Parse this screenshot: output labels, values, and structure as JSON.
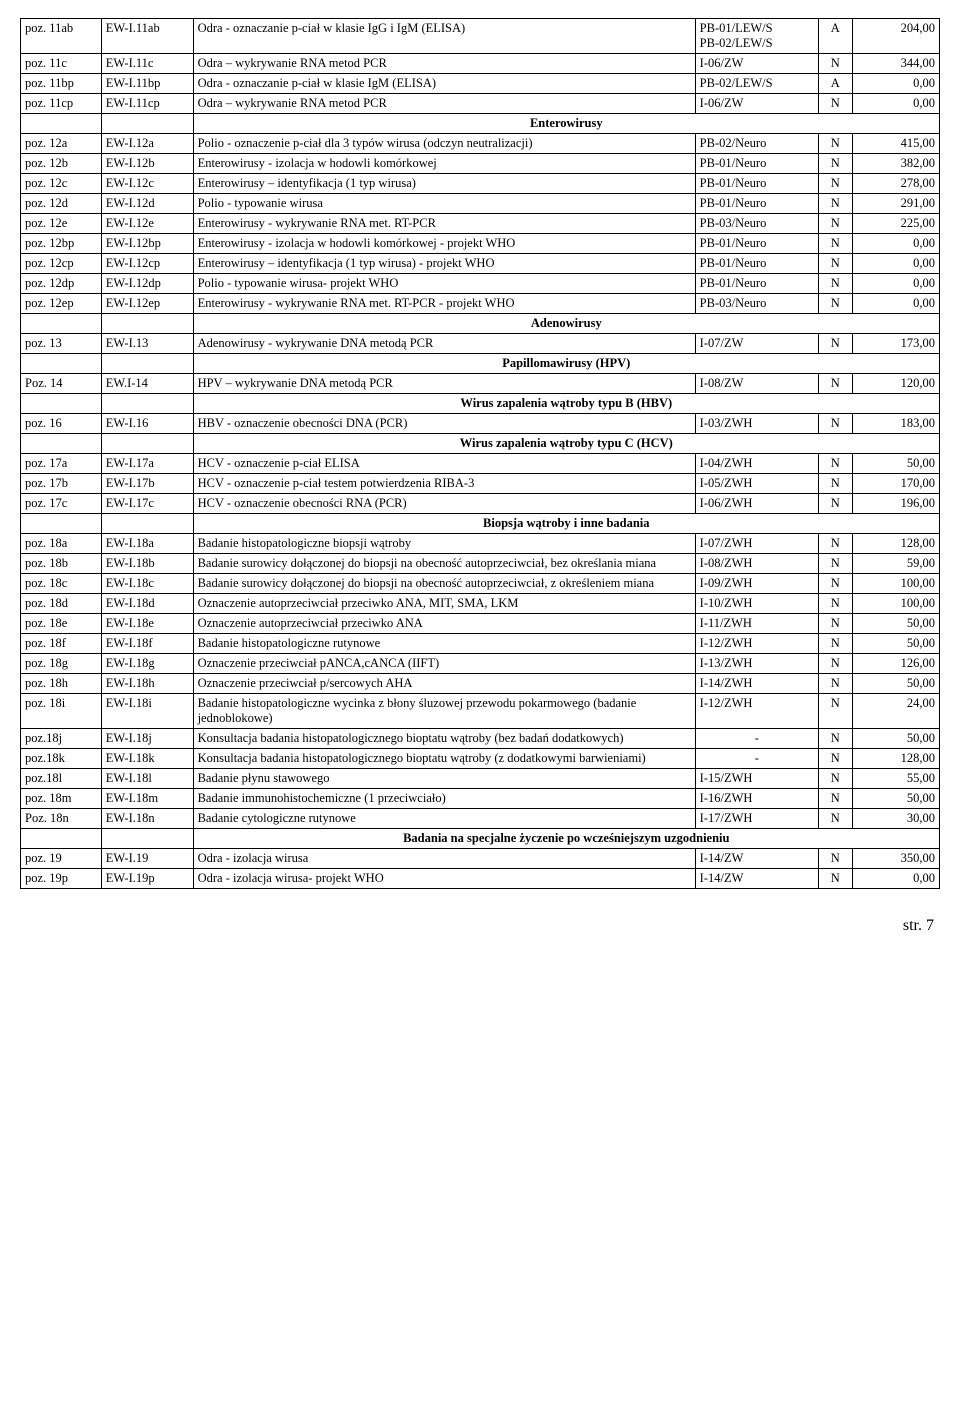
{
  "footer": "str. 7",
  "rows": [
    {
      "type": "row2",
      "poz": "poz. 11ab",
      "code": "EW-I.11ab",
      "desc": "Odra  - oznaczanie p-ciał w klasie IgG  i IgM (ELISA)",
      "ref1": "PB-01/LEW/S",
      "ref2": "PB-02/LEW/S",
      "flag": "A",
      "price": "204,00"
    },
    {
      "type": "row",
      "poz": "poz. 11c",
      "code": "EW-I.11c",
      "desc": "Odra – wykrywanie RNA metod PCR",
      "ref": "I-06/ZW",
      "flag": "N",
      "price": "344,00"
    },
    {
      "type": "row",
      "poz": "poz. 11bp",
      "code": "EW-I.11bp",
      "desc": "Odra  - oznaczanie p-ciał w klasie IgM (ELISA)",
      "ref": "PB-02/LEW/S",
      "flag": "A",
      "price": "0,00"
    },
    {
      "type": "row",
      "poz": "poz. 11cp",
      "code": "EW-I.11cp",
      "desc": "Odra – wykrywanie RNA metod PCR",
      "ref": "I-06/ZW",
      "flag": "N",
      "price": "0,00"
    },
    {
      "type": "section",
      "label": "Enterowirusy",
      "bold": true
    },
    {
      "type": "row",
      "poz": "poz. 12a",
      "code": "EW-I.12a",
      "desc": "Polio - oznaczenie p-ciał dla 3 typów wirusa (odczyn neutralizacji)",
      "ref": "PB-02/Neuro",
      "flag": "N",
      "price": "415,00"
    },
    {
      "type": "row",
      "poz": "poz. 12b",
      "code": "EW-I.12b",
      "desc": "Enterowirusy - izolacja w hodowli komórkowej",
      "ref": "PB-01/Neuro",
      "flag": "N",
      "price": "382,00"
    },
    {
      "type": "row",
      "poz": "poz. 12c",
      "code": "EW-I.12c",
      "desc": "Enterowirusy – identyfikacja  (1 typ wirusa)",
      "ref": "PB-01/Neuro",
      "flag": "N",
      "price": "278,00"
    },
    {
      "type": "row",
      "poz": "poz. 12d",
      "code": "EW-I.12d",
      "desc": "Polio - typowanie wirusa",
      "ref": "PB-01/Neuro",
      "flag": "N",
      "price": "291,00"
    },
    {
      "type": "row",
      "poz": "poz. 12e",
      "code": "EW-I.12e",
      "desc": "Enterowirusy - wykrywanie RNA met. RT-PCR",
      "ref": "PB-03/Neuro",
      "flag": "N",
      "price": "225,00"
    },
    {
      "type": "row",
      "poz": "poz. 12bp",
      "code": "EW-I.12bp",
      "desc": "Enterowirusy - izolacja w hodowli komórkowej - projekt WHO",
      "ref": "PB-01/Neuro",
      "flag": "N",
      "price": "0,00"
    },
    {
      "type": "row",
      "poz": "poz. 12cp",
      "code": "EW-I.12cp",
      "desc": "Enterowirusy – identyfikacja  (1 typ wirusa) - projekt WHO",
      "ref": "PB-01/Neuro",
      "flag": "N",
      "price": "0,00"
    },
    {
      "type": "row",
      "poz": "poz. 12dp",
      "code": "EW-I.12dp",
      "desc": "Polio - typowanie wirusa- projekt WHO",
      "ref": "PB-01/Neuro",
      "flag": "N",
      "price": "0,00"
    },
    {
      "type": "row",
      "poz": "poz. 12ep",
      "code": "EW-I.12ep",
      "desc": "Enterowirusy - wykrywanie RNA met. RT-PCR - projekt WHO",
      "ref": "PB-03/Neuro",
      "flag": "N",
      "price": "0,00"
    },
    {
      "type": "section",
      "label": "Adenowirusy",
      "bold": true
    },
    {
      "type": "row",
      "poz": "poz. 13",
      "code": "EW-I.13",
      "desc": "Adenowirusy  - wykrywanie DNA metodą PCR",
      "ref": "I-07/ZW",
      "flag": "N",
      "price": "173,00"
    },
    {
      "type": "section",
      "label": "Papillomawirusy (HPV)",
      "bold": true
    },
    {
      "type": "row",
      "poz": "Poz. 14",
      "code": "EW.I-14",
      "desc": "HPV – wykrywanie DNA metodą PCR",
      "ref": "I-08/ZW",
      "flag": "N",
      "price": "120,00"
    },
    {
      "type": "section",
      "label": "Wirus zapalenia wątroby typu B (HBV)",
      "bold": true
    },
    {
      "type": "row",
      "poz": "poz. 16",
      "code": "EW-I.16",
      "desc": "HBV - oznaczenie obecności DNA (PCR)",
      "ref": "I-03/ZWH",
      "flag": "N",
      "price": "183,00"
    },
    {
      "type": "section",
      "label": "Wirus zapalenia wątroby typu C (HCV)",
      "bold": true
    },
    {
      "type": "row",
      "poz": "poz. 17a",
      "code": "EW-I.17a",
      "desc": "HCV - oznaczenie p-ciał  ELISA",
      "ref": "I-04/ZWH",
      "flag": "N",
      "price": "50,00"
    },
    {
      "type": "row",
      "poz": "poz. 17b",
      "code": "EW-I.17b",
      "desc": "HCV - oznaczenie p-ciał testem potwierdzenia RIBA-3",
      "ref": "I-05/ZWH",
      "flag": "N",
      "price": "170,00"
    },
    {
      "type": "row",
      "poz": "poz. 17c",
      "code": "EW-I.17c",
      "desc": "HCV - oznaczenie obecności RNA (PCR)",
      "ref": "I-06/ZWH",
      "flag": "N",
      "price": "196,00"
    },
    {
      "type": "section",
      "label": "Biopsja wątroby i inne badania",
      "bold": true
    },
    {
      "type": "row",
      "poz": "poz. 18a",
      "code": "EW-I.18a",
      "desc": "Badanie histopatologiczne biopsji wątroby",
      "ref": "I-07/ZWH",
      "flag": "N",
      "price": "128,00"
    },
    {
      "type": "row",
      "poz": "poz. 18b",
      "code": "EW-I.18b",
      "desc": "Badanie surowicy dołączonej do biopsji na obecność autoprzeciwciał, bez określania miana",
      "ref": "I-08/ZWH",
      "flag": "N",
      "price": "59,00"
    },
    {
      "type": "row",
      "poz": "poz. 18c",
      "code": "EW-I.18c",
      "desc": "Badanie surowicy dołączonej do biopsji na obecność autoprzeciwciał, z określeniem miana",
      "ref": "I-09/ZWH",
      "flag": "N",
      "price": "100,00"
    },
    {
      "type": "row",
      "poz": "poz. 18d",
      "code": "EW-I.18d",
      "desc": "Oznaczenie autoprzeciwciał przeciwko ANA, MIT, SMA, LKM",
      "ref": "I-10/ZWH",
      "flag": "N",
      "price": "100,00"
    },
    {
      "type": "row",
      "poz": "poz. 18e",
      "code": "EW-I.18e",
      "desc": "Oznaczenie autoprzeciwciał przeciwko ANA",
      "ref": "I-11/ZWH",
      "flag": "N",
      "price": "50,00"
    },
    {
      "type": "row",
      "poz": "poz. 18f",
      "code": "EW-I.18f",
      "desc": "Badanie histopatologiczne rutynowe",
      "ref": "I-12/ZWH",
      "flag": "N",
      "price": "50,00"
    },
    {
      "type": "row",
      "poz": "poz. 18g",
      "code": "EW-I.18g",
      "desc": "Oznaczenie przeciwciał pANCA,cANCA (IIFT)",
      "ref": "I-13/ZWH",
      "flag": "N",
      "price": "126,00"
    },
    {
      "type": "row",
      "poz": "poz. 18h",
      "code": "EW-I.18h",
      "desc": "Oznaczenie przeciwciał p/sercowych AHA",
      "ref": "I-14/ZWH",
      "flag": "N",
      "price": "50,00"
    },
    {
      "type": "row",
      "poz": "poz. 18i",
      "code": "EW-I.18i",
      "desc": "Badanie histopatologiczne wycinka z błony śluzowej przewodu pokarmowego (badanie jednoblokowe)",
      "ref": "I-12/ZWH",
      "flag": "N",
      "price": "24,00"
    },
    {
      "type": "row",
      "poz": "poz.18j",
      "code": "EW-I.18j",
      "desc": "Konsultacja badania histopatologicznego bioptatu wątroby (bez badań dodatkowych)",
      "ref": "-",
      "flag": "N",
      "price": "50,00",
      "refcenter": true
    },
    {
      "type": "row",
      "poz": "poz.18k",
      "code": "EW-I.18k",
      "desc": "Konsultacja badania histopatologicznego bioptatu wątroby (z  dodatkowymi barwieniami)",
      "ref": "-",
      "flag": "N",
      "price": "128,00",
      "refcenter": true
    },
    {
      "type": "row",
      "poz": "poz.18l",
      "code": "EW-I.18l",
      "desc": "Badanie płynu stawowego",
      "ref": "I-15/ZWH",
      "flag": "N",
      "price": "55,00"
    },
    {
      "type": "row",
      "poz": "poz. 18m",
      "code": "EW-I.18m",
      "desc": "Badanie immunohistochemiczne (1 przeciwciało)",
      "ref": "I-16/ZWH",
      "flag": "N",
      "price": "50,00"
    },
    {
      "type": "row",
      "poz": "Poz. 18n",
      "code": "EW-I.18n",
      "desc": "Badanie cytologiczne rutynowe",
      "ref": "I-17/ZWH",
      "flag": "N",
      "price": "30,00"
    },
    {
      "type": "section",
      "label": "Badania na specjalne życzenie po wcześniejszym uzgodnieniu",
      "bold": true
    },
    {
      "type": "row",
      "poz": "poz. 19",
      "code": "EW-I.19",
      "desc": "Odra - izolacja wirusa",
      "ref": "I-14/ZW",
      "flag": "N",
      "price": "350,00"
    },
    {
      "type": "row",
      "poz": "poz. 19p",
      "code": "EW-I.19p",
      "desc": "Odra - izolacja wirusa- projekt WHO",
      "ref": "I-14/ZW",
      "flag": "N",
      "price": "0,00"
    }
  ]
}
